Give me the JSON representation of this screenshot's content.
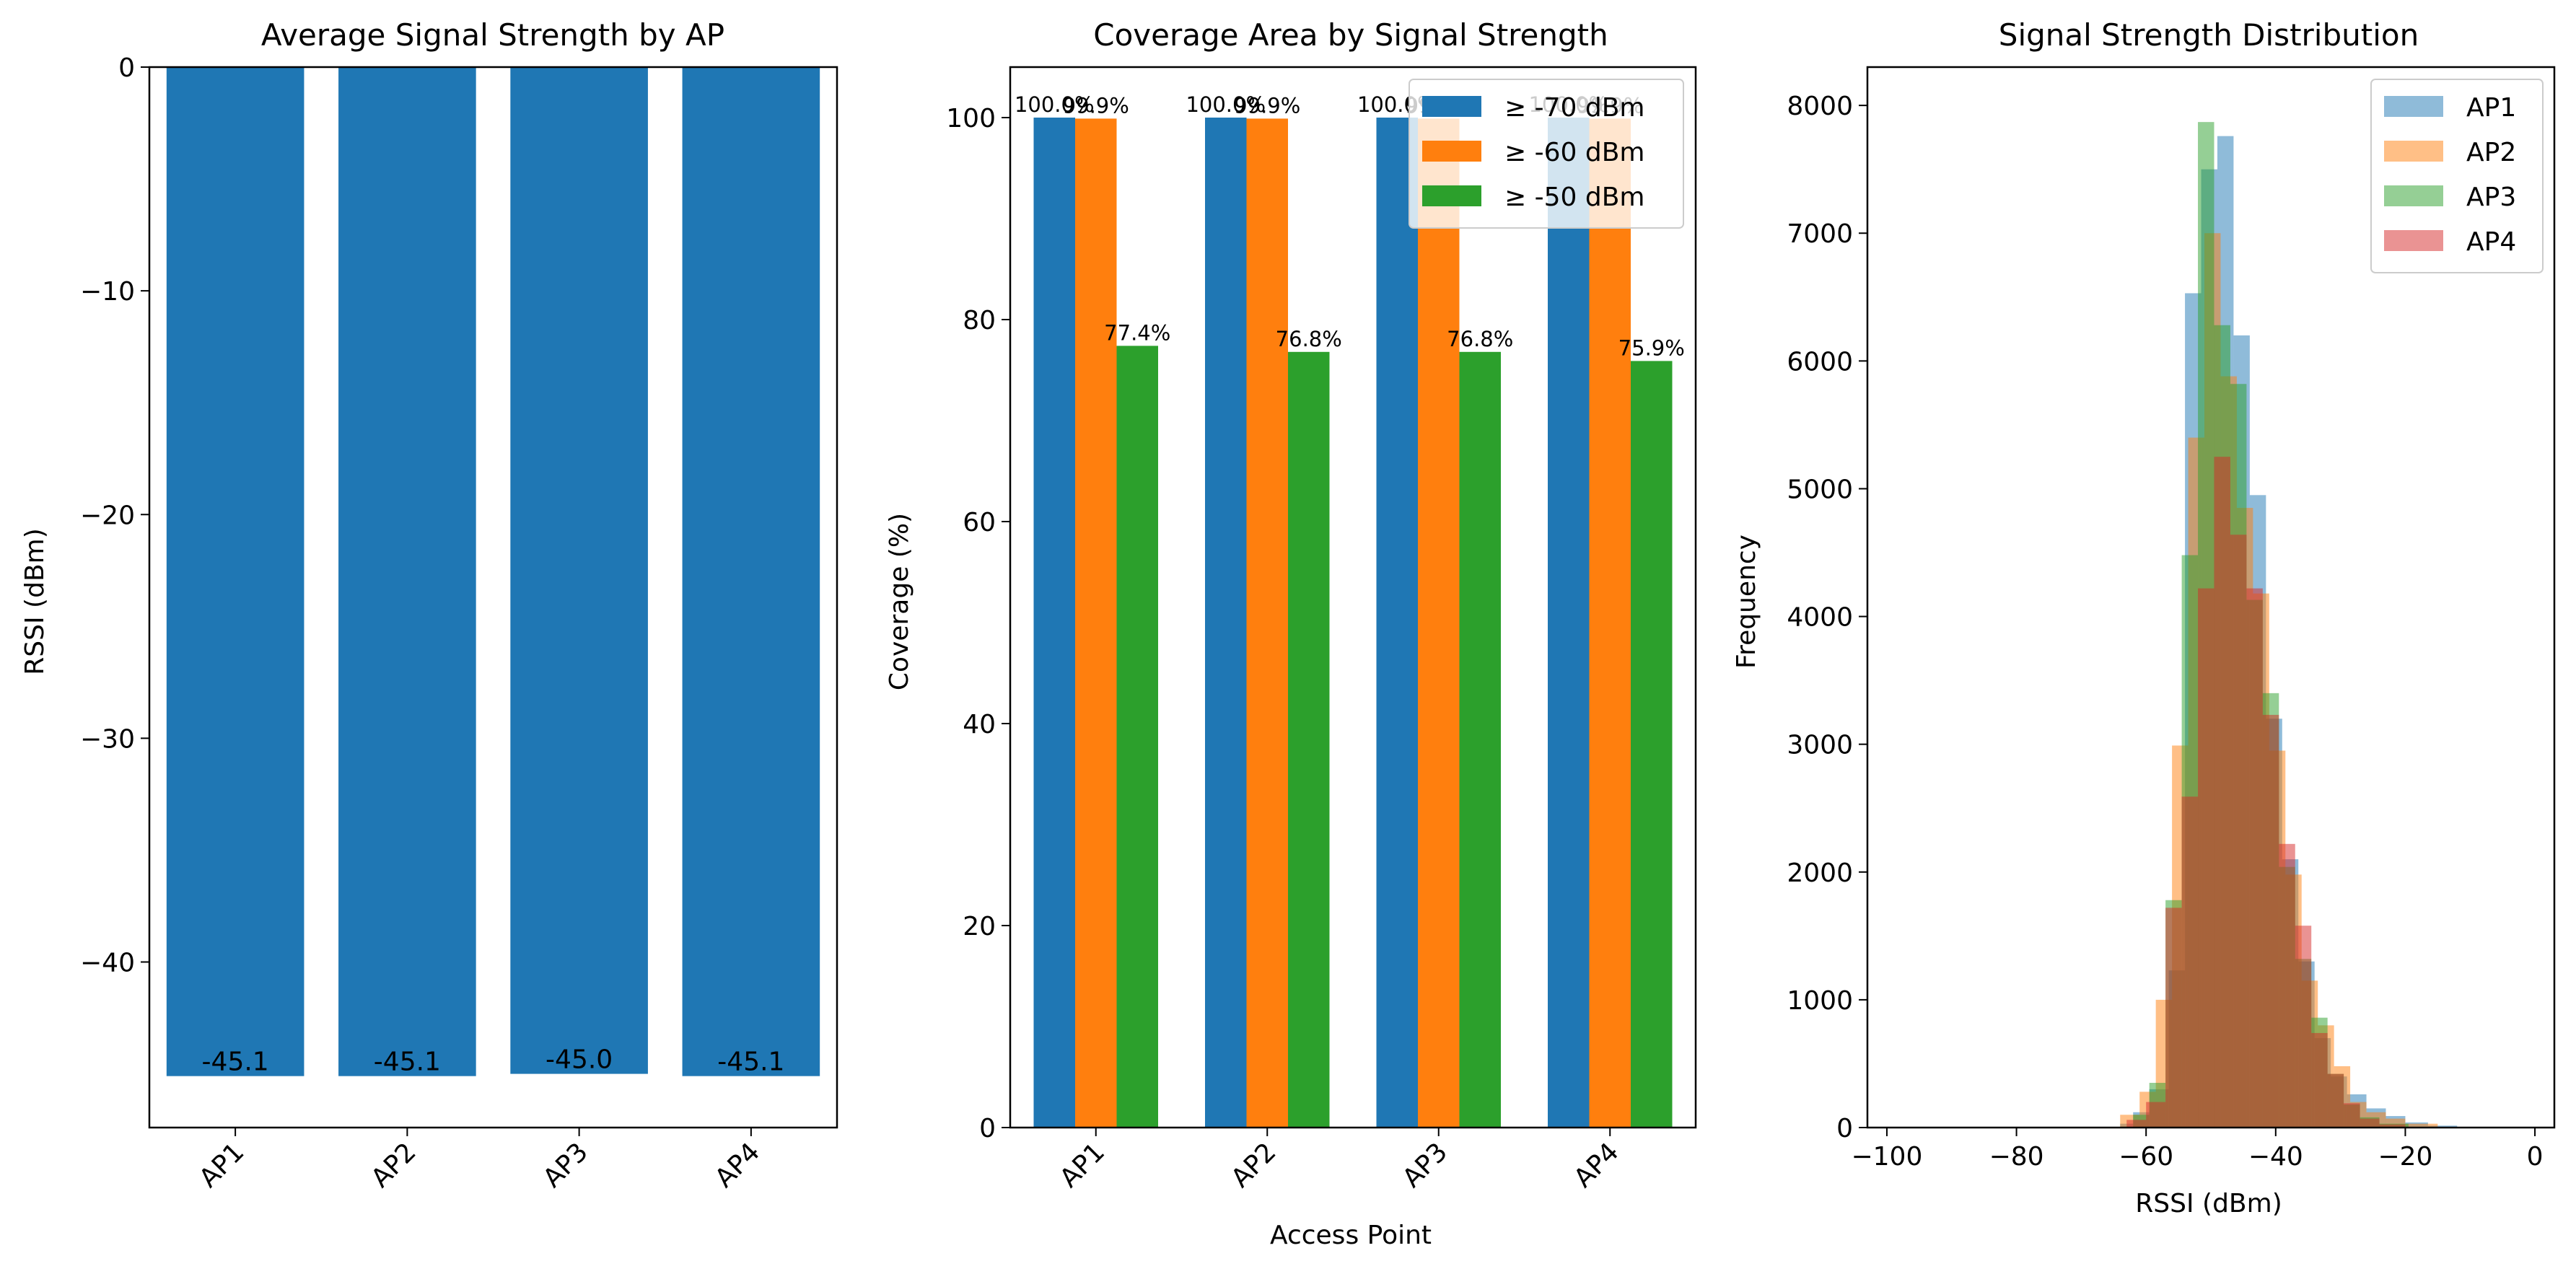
{
  "colors": {
    "c0": "#1f77b4",
    "c1": "#ff7f0e",
    "c2": "#2ca02c",
    "c3": "#d62728"
  },
  "chart_data": [
    {
      "type": "bar",
      "title": "Average Signal Strength by AP",
      "xlabel": "",
      "ylabel": "RSSI (dBm)",
      "categories": [
        "AP1",
        "AP2",
        "AP3",
        "AP4"
      ],
      "values": [
        -45.1,
        -45.1,
        -45.0,
        -45.1
      ],
      "value_labels": [
        "-45.1",
        "-45.1",
        "-45.0",
        "-45.1"
      ],
      "ylim": [
        -47.4,
        0
      ],
      "yticks": [
        0,
        -10,
        -20,
        -30,
        -40
      ],
      "ytick_labels": [
        "0",
        "−10",
        "−20",
        "−30",
        "−40"
      ],
      "grid": false
    },
    {
      "type": "bar",
      "title": "Coverage Area by Signal Strength",
      "xlabel": "Access Point",
      "ylabel": "Coverage (%)",
      "categories": [
        "AP1",
        "AP2",
        "AP3",
        "AP4"
      ],
      "series": [
        {
          "name": "≥ -70 dBm",
          "values": [
            100.0,
            100.0,
            100.0,
            100.0
          ],
          "labels": [
            "100.0%",
            "100.0%",
            "100.0%",
            "100.0%"
          ]
        },
        {
          "name": "≥ -60 dBm",
          "values": [
            99.9,
            99.9,
            99.9,
            99.9
          ],
          "labels": [
            "99.9%",
            "99.9%",
            "99.9%",
            "99.9%"
          ]
        },
        {
          "name": "≥ -50 dBm",
          "values": [
            77.4,
            76.8,
            76.8,
            75.9
          ],
          "labels": [
            "77.4%",
            "76.8%",
            "76.8%",
            "75.9%"
          ]
        }
      ],
      "ylim": [
        0,
        105
      ],
      "yticks": [
        0,
        20,
        40,
        60,
        80,
        100
      ],
      "ytick_labels": [
        "0",
        "20",
        "40",
        "60",
        "80",
        "100"
      ],
      "legend": "top-right",
      "grid": false
    },
    {
      "type": "histogram",
      "title": "Signal Strength Distribution",
      "xlabel": "RSSI (dBm)",
      "ylabel": "Frequency",
      "xlim": [
        -103,
        3
      ],
      "ylim": [
        0,
        8300
      ],
      "xticks": [
        -100,
        -80,
        -60,
        -40,
        -20,
        0
      ],
      "xtick_labels": [
        "−100",
        "−80",
        "−60",
        "−40",
        "−20",
        "0"
      ],
      "yticks": [
        0,
        1000,
        2000,
        3000,
        4000,
        5000,
        6000,
        7000,
        8000
      ],
      "ytick_labels": [
        "0",
        "1000",
        "2000",
        "3000",
        "4000",
        "5000",
        "6000",
        "7000",
        "8000"
      ],
      "legend": "top-right",
      "series": [
        {
          "name": "AP1",
          "bins": [
            [
              -64,
              -62,
              30
            ],
            [
              -62,
              -59.5,
              120
            ],
            [
              -59.5,
              -56.5,
              300
            ],
            [
              -56.5,
              -54,
              1230
            ],
            [
              -54,
              -51.5,
              6530
            ],
            [
              -51.5,
              -49,
              7500
            ],
            [
              -49,
              -46.5,
              7760
            ],
            [
              -46.5,
              -44,
              6200
            ],
            [
              -44,
              -41.5,
              4950
            ],
            [
              -41.5,
              -39,
              3200
            ],
            [
              -39,
              -36.5,
              2100
            ],
            [
              -36.5,
              -34,
              1300
            ],
            [
              -34,
              -31.5,
              700
            ],
            [
              -31.5,
              -29,
              400
            ],
            [
              -29,
              -26,
              260
            ],
            [
              -26,
              -23,
              150
            ],
            [
              -23,
              -20,
              90
            ],
            [
              -20,
              -16.5,
              40
            ],
            [
              -16.5,
              -12,
              15
            ]
          ]
        },
        {
          "name": "AP2",
          "bins": [
            [
              -64,
              -61,
              100
            ],
            [
              -61,
              -58.5,
              280
            ],
            [
              -58.5,
              -56,
              1000
            ],
            [
              -56,
              -53.5,
              2990
            ],
            [
              -53.5,
              -51,
              5400
            ],
            [
              -51,
              -48.5,
              7000
            ],
            [
              -48.5,
              -46,
              5880
            ],
            [
              -46,
              -43.5,
              4850
            ],
            [
              -43.5,
              -41,
              4180
            ],
            [
              -41,
              -38.5,
              2950
            ],
            [
              -38.5,
              -36,
              1980
            ],
            [
              -36,
              -33.5,
              1150
            ],
            [
              -33.5,
              -31,
              800
            ],
            [
              -31,
              -28.5,
              480
            ],
            [
              -28.5,
              -26,
              200
            ],
            [
              -26,
              -23,
              120
            ],
            [
              -23,
              -20,
              70
            ],
            [
              -20,
              -15,
              30
            ]
          ]
        },
        {
          "name": "AP3",
          "bins": [
            [
              -62,
              -59.5,
              100
            ],
            [
              -59.5,
              -57,
              350
            ],
            [
              -57,
              -54.5,
              1780
            ],
            [
              -54.5,
              -52,
              4480
            ],
            [
              -52,
              -49.5,
              7870
            ],
            [
              -49.5,
              -47,
              6280
            ],
            [
              -47,
              -44.5,
              5820
            ],
            [
              -44.5,
              -42,
              4130
            ],
            [
              -42,
              -39.5,
              3400
            ],
            [
              -39.5,
              -37,
              2040
            ],
            [
              -37,
              -34.5,
              1320
            ],
            [
              -34.5,
              -32,
              860
            ],
            [
              -32,
              -29.5,
              420
            ],
            [
              -29.5,
              -27,
              180
            ],
            [
              -27,
              -24,
              80
            ],
            [
              -24,
              -19.5,
              30
            ]
          ]
        },
        {
          "name": "AP4",
          "bins": [
            [
              -63,
              -60,
              60
            ],
            [
              -60,
              -57,
              200
            ],
            [
              -57,
              -54.5,
              1720
            ],
            [
              -54.5,
              -52,
              2590
            ],
            [
              -52,
              -49.5,
              4220
            ],
            [
              -49.5,
              -47,
              5250
            ],
            [
              -47,
              -44.5,
              4640
            ],
            [
              -44.5,
              -42,
              4220
            ],
            [
              -42,
              -39.5,
              3230
            ],
            [
              -39.5,
              -37,
              2220
            ],
            [
              -37,
              -34.5,
              1580
            ],
            [
              -34.5,
              -32,
              740
            ],
            [
              -32,
              -29.5,
              420
            ],
            [
              -29.5,
              -27,
              190
            ],
            [
              -27,
              -24,
              70
            ],
            [
              -24,
              -20,
              25
            ]
          ]
        }
      ]
    }
  ]
}
